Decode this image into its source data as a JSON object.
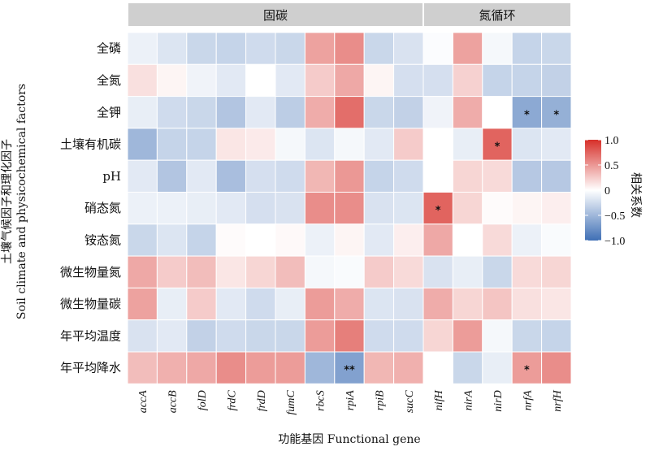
{
  "chart_data": {
    "type": "heatmap",
    "groups": [
      {
        "label": "固碳",
        "genes": [
          "accA",
          "accB",
          "folD",
          "frdC",
          "frdD",
          "fumC",
          "rbcS",
          "rpiA",
          "rpiB",
          "sucC"
        ]
      },
      {
        "label": "氮循环",
        "genes": [
          "nifH",
          "nirA",
          "nirD",
          "nrfA",
          "nrfH"
        ]
      }
    ],
    "x_categories": [
      "accA",
      "accB",
      "folD",
      "frdC",
      "frdD",
      "fumC",
      "rbcS",
      "rpiA",
      "rpiB",
      "sucC",
      "nifH",
      "nirA",
      "nirD",
      "nrfA",
      "nrfH"
    ],
    "y_categories": [
      "全磷",
      "全氮",
      "全钾",
      "土壤有机碳",
      "pH",
      "硝态氮",
      "铵态氮",
      "微生物量氮",
      "微生物量碳",
      "年平均温度",
      "年平均降水"
    ],
    "values": [
      [
        -0.1,
        -0.18,
        -0.28,
        -0.3,
        -0.25,
        -0.28,
        0.45,
        0.55,
        -0.28,
        -0.2,
        -0.02,
        0.45,
        -0.05,
        -0.3,
        -0.28
      ],
      [
        0.15,
        0.05,
        -0.08,
        -0.15,
        0.0,
        -0.15,
        0.25,
        0.42,
        0.05,
        -0.22,
        -0.22,
        0.22,
        -0.3,
        -0.3,
        -0.32
      ],
      [
        -0.12,
        -0.25,
        -0.28,
        -0.4,
        -0.15,
        -0.35,
        0.4,
        0.7,
        -0.28,
        -0.32,
        -0.08,
        0.4,
        0.0,
        -0.6,
        -0.55
      ],
      [
        -0.5,
        -0.3,
        -0.3,
        0.12,
        0.1,
        -0.05,
        -0.18,
        -0.05,
        -0.15,
        0.25,
        0.0,
        -0.12,
        0.75,
        -0.18,
        -0.15
      ],
      [
        -0.15,
        -0.4,
        -0.15,
        -0.45,
        -0.22,
        -0.25,
        0.35,
        0.5,
        -0.3,
        -0.25,
        0.0,
        0.2,
        0.18,
        -0.38,
        -0.38
      ],
      [
        -0.1,
        -0.1,
        -0.12,
        -0.15,
        -0.22,
        -0.2,
        0.55,
        0.55,
        -0.2,
        -0.18,
        0.75,
        0.2,
        0.02,
        0.05,
        0.08
      ],
      [
        -0.28,
        -0.18,
        -0.3,
        0.02,
        0.0,
        0.03,
        -0.1,
        0.05,
        -0.15,
        0.08,
        0.42,
        0.0,
        0.18,
        -0.1,
        -0.03
      ],
      [
        0.42,
        0.25,
        0.32,
        0.12,
        0.2,
        0.32,
        -0.05,
        -0.03,
        0.25,
        0.18,
        -0.2,
        -0.12,
        -0.28,
        0.18,
        0.2
      ],
      [
        0.45,
        -0.12,
        0.25,
        -0.15,
        -0.25,
        -0.12,
        0.48,
        0.4,
        -0.18,
        -0.2,
        0.4,
        0.2,
        0.28,
        0.15,
        0.12
      ],
      [
        -0.2,
        -0.15,
        -0.32,
        -0.25,
        -0.28,
        -0.28,
        0.48,
        0.62,
        -0.25,
        -0.25,
        0.2,
        0.48,
        -0.05,
        -0.28,
        -0.3
      ],
      [
        0.32,
        0.38,
        0.42,
        0.55,
        0.48,
        0.48,
        -0.5,
        -0.65,
        0.35,
        0.38,
        0.0,
        -0.28,
        -0.12,
        0.48,
        0.55
      ]
    ],
    "significance": [
      {
        "row": 2,
        "col": 13,
        "mark": "*"
      },
      {
        "row": 2,
        "col": 14,
        "mark": "*"
      },
      {
        "row": 3,
        "col": 12,
        "mark": "*"
      },
      {
        "row": 5,
        "col": 10,
        "mark": "*"
      },
      {
        "row": 10,
        "col": 7,
        "mark": "**"
      },
      {
        "row": 10,
        "col": 13,
        "mark": "*"
      }
    ],
    "xlabel": "功能基因 Functional gene",
    "ylabel_line1": "土壤气候因子和理化因子",
    "ylabel_line2": "Soil climate and physicochemical factors",
    "colorbar": {
      "title": "相关系数",
      "range": [
        -1.0,
        1.0
      ],
      "ticks": [
        {
          "value": 1.0,
          "label": "1.0"
        },
        {
          "value": 0.5,
          "label": "0.5"
        },
        {
          "value": 0.0,
          "label": "0"
        },
        {
          "value": -0.5,
          "label": "−0.5"
        },
        {
          "value": -1.0,
          "label": "−1.0"
        }
      ],
      "colors": {
        "negative": "#3f6fb5",
        "zero": "#ffffff",
        "positive": "#d7302a"
      }
    },
    "group_bar_color": "#cfcfcf"
  }
}
